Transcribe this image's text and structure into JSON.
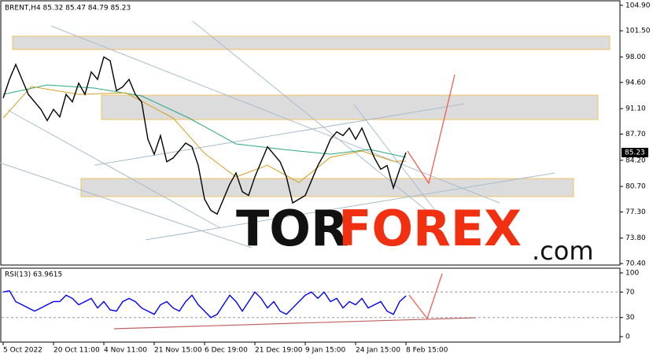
{
  "chart_data": [
    {
      "type": "line",
      "title": "BRENT,H4 85.32 85.47 84.79 85.23",
      "categories": [
        "5 Oct 2022",
        null,
        null,
        null,
        null,
        null,
        null,
        null,
        "20 Oct 11:00",
        null,
        null,
        null,
        null,
        null,
        null,
        null,
        "4 Nov 11:00",
        null,
        null,
        null,
        null,
        null,
        null,
        null,
        "21 Nov 15:00",
        null,
        null,
        null,
        null,
        null,
        null,
        null,
        "6 Dec 19:00",
        null,
        null,
        null,
        null,
        null,
        null,
        null,
        "21 Dec 19:00",
        null,
        null,
        null,
        null,
        null,
        null,
        null,
        "9 Jan 15:00",
        null,
        null,
        null,
        null,
        null,
        null,
        null,
        "24 Jan 15:00",
        null,
        null,
        null,
        null,
        null,
        null,
        null,
        "8 Feb 15:00"
      ],
      "values": [
        92.5,
        95,
        97,
        95,
        93,
        92,
        91,
        89.5,
        91,
        90,
        93,
        92,
        94.5,
        93,
        96,
        95,
        98,
        97.5,
        93.5,
        94,
        95,
        93,
        92,
        87,
        85,
        87.5,
        84,
        84.5,
        85.5,
        86.5,
        86,
        83.5,
        79,
        77.5,
        77,
        79,
        81,
        82.5,
        80,
        79.5,
        82,
        84,
        86,
        85,
        84,
        82,
        78.5,
        79,
        79.5,
        81.5,
        83.5,
        85,
        87,
        88,
        87.5,
        88.5,
        87,
        88.5,
        86.5,
        84.5,
        83,
        83.5,
        80.5,
        83,
        85.23
      ],
      "color": "#000000",
      "ylim": [
        70.2,
        105.4
      ],
      "yticks": [
        {
          "value": 104.9,
          "label": "104.90"
        },
        {
          "value": 101.5,
          "label": "101.50"
        },
        {
          "value": 98,
          "label": "98.00"
        },
        {
          "value": 94.6,
          "label": "94.60"
        },
        {
          "value": 91.1,
          "label": "91.10"
        },
        {
          "value": 87.7,
          "label": "87.70"
        },
        {
          "value": 84.2,
          "label": "84.20"
        },
        {
          "value": 80.7,
          "label": "80.70"
        },
        {
          "value": 77.3,
          "label": "77.30"
        },
        {
          "value": 73.8,
          "label": "73.80"
        },
        {
          "value": 70.4,
          "label": "70.40"
        }
      ],
      "watermark": [
        "TOR",
        "FOREX",
        ".com"
      ]
    },
    {
      "type": "line",
      "title": "RSI(13) 63.9615",
      "values": [
        70,
        72,
        55,
        50,
        45,
        40,
        45,
        50,
        55,
        55,
        65,
        60,
        50,
        55,
        60,
        45,
        55,
        42,
        40,
        55,
        60,
        55,
        45,
        40,
        35,
        50,
        55,
        45,
        40,
        55,
        65,
        50,
        40,
        30,
        35,
        50,
        65,
        55,
        40,
        55,
        70,
        60,
        45,
        55,
        40,
        35,
        45,
        55,
        65,
        70,
        60,
        70,
        55,
        60,
        45,
        55,
        50,
        60,
        45,
        50,
        55,
        40,
        35,
        55,
        63.9615
      ],
      "color": "#0000ff",
      "ylim": [
        -8.6,
        107.4
      ],
      "yticks": [
        100,
        70,
        30,
        0
      ]
    }
  ]
}
